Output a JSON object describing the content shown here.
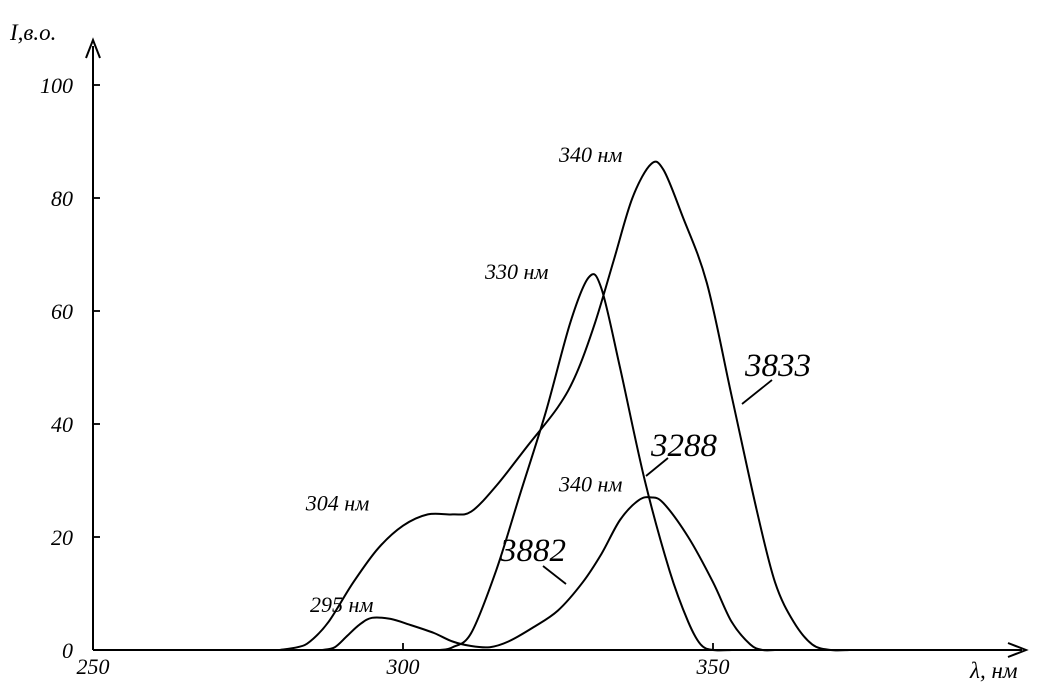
{
  "chart_data": {
    "type": "line",
    "ylabel": "I,в.о.",
    "xlabel": "λ, нм",
    "xlim": [
      250,
      355
    ],
    "ylim": [
      0,
      100
    ],
    "x_ticks": [
      250,
      300,
      350
    ],
    "y_ticks": [
      0,
      20,
      40,
      60,
      80,
      100
    ],
    "grid": false,
    "legend": "none",
    "series": [
      {
        "name": "3833",
        "points": [
          [
            280,
            0
          ],
          [
            283,
            0.5
          ],
          [
            285,
            1.5
          ],
          [
            288,
            5
          ],
          [
            292,
            12
          ],
          [
            296,
            18
          ],
          [
            300,
            22
          ],
          [
            304,
            24
          ],
          [
            308,
            24
          ],
          [
            311,
            24.5
          ],
          [
            315,
            29
          ],
          [
            320,
            36
          ],
          [
            325,
            43
          ],
          [
            328,
            49
          ],
          [
            331,
            58
          ],
          [
            334,
            69
          ],
          [
            337,
            80
          ],
          [
            340,
            86
          ],
          [
            342,
            85
          ],
          [
            345,
            77
          ],
          [
            349,
            65
          ],
          [
            353,
            45
          ],
          [
            357,
            25
          ],
          [
            360,
            12
          ],
          [
            363,
            5
          ],
          [
            366,
            1
          ],
          [
            369,
            0
          ],
          [
            372,
            0
          ]
        ]
      },
      {
        "name": "3288",
        "points": [
          [
            306,
            0
          ],
          [
            308,
            0.5
          ],
          [
            311,
            3
          ],
          [
            315,
            14
          ],
          [
            319,
            28
          ],
          [
            323,
            42
          ],
          [
            327,
            58
          ],
          [
            330,
            66
          ],
          [
            332,
            64
          ],
          [
            335,
            50
          ],
          [
            339,
            30
          ],
          [
            343,
            14
          ],
          [
            346,
            5
          ],
          [
            348,
            1
          ],
          [
            350,
            0
          ],
          [
            353,
            0
          ]
        ]
      },
      {
        "name": "3882",
        "points": [
          [
            287,
            0
          ],
          [
            289,
            0.5
          ],
          [
            291,
            2.5
          ],
          [
            293,
            4.5
          ],
          [
            295,
            5.7
          ],
          [
            298,
            5.5
          ],
          [
            301,
            4.5
          ],
          [
            305,
            3
          ],
          [
            308,
            1.5
          ],
          [
            311,
            0.7
          ],
          [
            314,
            0.5
          ],
          [
            317,
            1.5
          ],
          [
            321,
            4
          ],
          [
            325,
            7
          ],
          [
            329,
            12
          ],
          [
            332,
            17
          ],
          [
            335,
            23
          ],
          [
            338,
            26.5
          ],
          [
            340,
            27
          ],
          [
            342,
            26
          ],
          [
            346,
            20
          ],
          [
            350,
            12
          ],
          [
            353,
            5
          ],
          [
            356,
            1
          ],
          [
            358,
            0
          ],
          [
            360,
            0
          ]
        ]
      }
    ],
    "annotations": [
      {
        "text": "340 нм",
        "x": 340,
        "y": 86
      },
      {
        "text": "330 нм",
        "x": 330,
        "y": 66
      },
      {
        "text": "340 нм",
        "x": 340,
        "y": 27
      },
      {
        "text": "304 нм",
        "x": 304,
        "y": 24
      },
      {
        "text": "295 нм",
        "x": 295,
        "y": 5.7
      }
    ],
    "series_labels": [
      {
        "text": "3833",
        "series": "3833"
      },
      {
        "text": "3288",
        "series": "3288"
      },
      {
        "text": "3882",
        "series": "3882"
      }
    ]
  }
}
